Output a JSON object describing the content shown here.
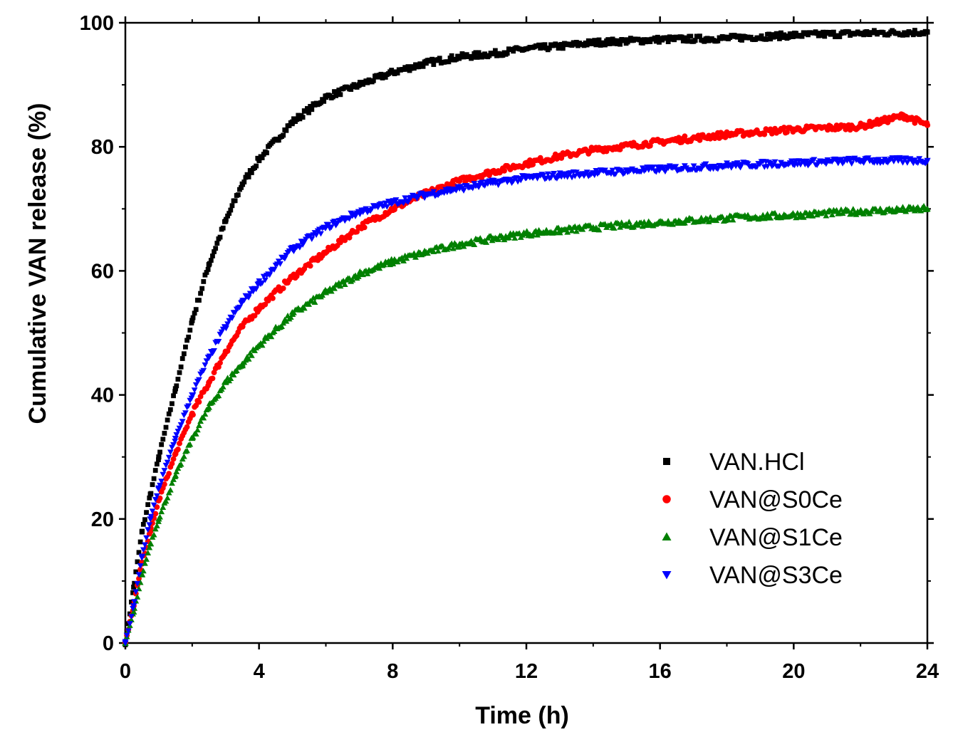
{
  "chart_data": {
    "type": "scatter",
    "title": "",
    "xlabel": "Time (h)",
    "ylabel": "Cumulative VAN release (%)",
    "xlim": [
      0,
      24
    ],
    "ylim": [
      0,
      100
    ],
    "x_ticks": [
      "0",
      "4",
      "8",
      "12",
      "16",
      "20",
      "24"
    ],
    "y_ticks": [
      "0",
      "20",
      "40",
      "60",
      "80",
      "100"
    ],
    "grid": false,
    "legend_position": "bottom-right",
    "series": [
      {
        "name": "VAN.HCl",
        "color": "#000000",
        "marker": "square",
        "x": [
          0,
          0.25,
          0.5,
          0.75,
          1,
          1.5,
          2,
          2.5,
          3,
          3.5,
          4,
          5,
          6,
          7,
          8,
          9,
          10,
          11,
          12,
          13,
          14,
          16,
          18,
          20,
          22,
          24
        ],
        "y": [
          0,
          9,
          18,
          24,
          30,
          41,
          52,
          61,
          68,
          74,
          78,
          84,
          88,
          90,
          92,
          93.5,
          94.5,
          95,
          95.8,
          96.2,
          96.8,
          97.3,
          97.5,
          98,
          98.3,
          98.5
        ]
      },
      {
        "name": "VAN@S0Ce",
        "color": "#ff0000",
        "marker": "circle",
        "x": [
          0,
          0.25,
          0.5,
          0.75,
          1,
          1.5,
          2,
          2.5,
          3,
          3.5,
          4,
          5,
          6,
          7,
          8,
          9,
          10,
          11,
          12,
          13,
          14,
          16,
          18,
          20,
          22,
          23.3,
          24
        ],
        "y": [
          0,
          6,
          13,
          18,
          23,
          30.5,
          37,
          42,
          47,
          51,
          54,
          59,
          63,
          67,
          70,
          72.5,
          74.5,
          76,
          77.3,
          78.5,
          79.5,
          80.8,
          82,
          82.8,
          83.3,
          85,
          83.5
        ]
      },
      {
        "name": "VAN@S1Ce",
        "color": "#008000",
        "marker": "triangle-up",
        "x": [
          0,
          0.25,
          0.5,
          0.75,
          1,
          1.5,
          2,
          2.5,
          3,
          3.5,
          4,
          5,
          6,
          7,
          8,
          9,
          10,
          11,
          12,
          13,
          14,
          16,
          18,
          20,
          22,
          24
        ],
        "y": [
          0,
          5,
          11,
          16,
          20,
          27,
          33,
          38,
          42,
          45,
          48,
          53,
          56.5,
          59.5,
          61.5,
          63,
          64.3,
          65.2,
          66,
          66.5,
          67,
          67.8,
          68.5,
          69,
          69.6,
          70
        ]
      },
      {
        "name": "VAN@S3Ce",
        "color": "#0000ff",
        "marker": "triangle-down",
        "x": [
          0,
          0.25,
          0.5,
          0.75,
          1,
          1.5,
          2,
          2.5,
          3,
          3.5,
          4,
          5,
          6,
          7,
          8,
          9,
          10,
          11,
          12,
          13,
          14,
          16,
          18,
          20,
          22,
          24
        ],
        "y": [
          0,
          6,
          14,
          20,
          25,
          33,
          40,
          46,
          51,
          55,
          58,
          63.5,
          67,
          69.5,
          71,
          72.3,
          73.3,
          74.2,
          75,
          75.4,
          75.8,
          76.4,
          77,
          77.4,
          77.8,
          77.8
        ]
      }
    ]
  }
}
